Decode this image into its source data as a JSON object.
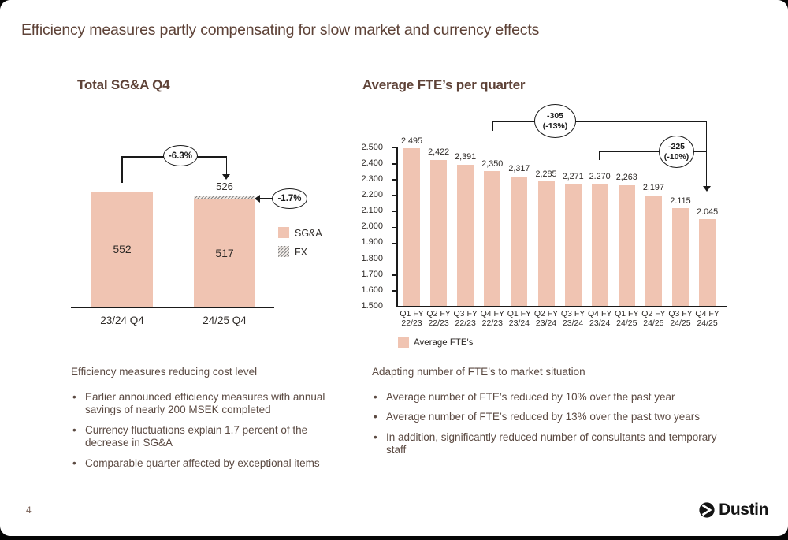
{
  "slide": {
    "title": "Efficiency measures partly compensating for slow market and currency effects",
    "page_number": "4",
    "logo_text": "Dustin"
  },
  "colors": {
    "bar_fill": "#F0C4B2",
    "heading": "#5E4237",
    "body_text": "#5B4A42",
    "line": "#1A1A1A"
  },
  "chart_data": [
    {
      "type": "bar",
      "stacked": true,
      "title": "Total SG&A Q4",
      "categories": [
        "23/24 Q4",
        "24/25 Q4"
      ],
      "series": [
        {
          "name": "SG&A",
          "values": [
            552,
            517
          ]
        },
        {
          "name": "FX",
          "values": [
            0,
            9
          ]
        }
      ],
      "bar_labels": [
        "552",
        "517"
      ],
      "stack_total_label": "526",
      "legend": [
        "SG&A",
        "FX"
      ],
      "annotations": [
        "-6.3%",
        "-1.7%"
      ],
      "ylim": [
        0,
        620
      ],
      "grid": false
    },
    {
      "type": "bar",
      "title": "Average FTE’s per quarter",
      "categories": [
        "Q1 FY 22/23",
        "Q2 FY 22/23",
        "Q3 FY 22/23",
        "Q4 FY 22/23",
        "Q1 FY 23/24",
        "Q2 FY 23/24",
        "Q3 FY 23/24",
        "Q4 FY 23/24",
        "Q1 FY 24/25",
        "Q2 FY 24/25",
        "Q3 FY 24/25",
        "Q4 FY 24/25"
      ],
      "values": [
        2495,
        2422,
        2391,
        2350,
        2317,
        2285,
        2271,
        2270,
        2263,
        2197,
        2115,
        2045
      ],
      "data_labels": [
        "2,495",
        "2,422",
        "2,391",
        "2,350",
        "2,317",
        "2,285",
        "2,271",
        "2.270",
        "2,263",
        "2,197",
        "2.115",
        "2.045"
      ],
      "ylim": [
        1500,
        2500
      ],
      "y_ticks": [
        "2.500",
        "2.400",
        "2.300",
        "2.200",
        "2.100",
        "2.000",
        "1.900",
        "1.800",
        "1.700",
        "1.600",
        "1.500"
      ],
      "legend": [
        "Average FTE's"
      ],
      "grid": false,
      "annotations": [
        {
          "line1": "-305",
          "line2": "(-13%)",
          "from": "Q4 FY 22/23",
          "to": "Q4 FY 24/25"
        },
        {
          "line1": "-225",
          "line2": "(-10%)",
          "from": "Q4 FY 23/24",
          "to": "Q4 FY 24/25"
        }
      ]
    }
  ],
  "notes_left": {
    "heading": "Efficiency measures reducing cost level",
    "bullets": [
      "Earlier announced efficiency measures with annual savings of nearly 200 MSEK completed",
      "Currency fluctuations explain 1.7 percent of the decrease in SG&A",
      "Comparable quarter affected by exceptional items"
    ]
  },
  "notes_right": {
    "heading": "Adapting number of FTE’s to market situation",
    "bullets": [
      "Average number of FTE’s reduced by 10% over the past year",
      "Average number of FTE’s reduced by 13% over the past two years",
      "In addition, significantly reduced number of consultants and temporary staff"
    ]
  }
}
